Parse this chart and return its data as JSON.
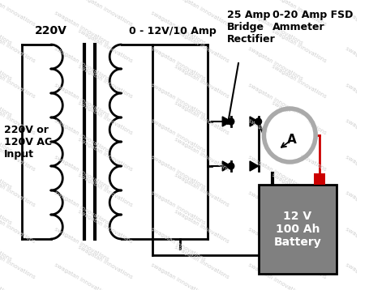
{
  "background_color": "#ffffff",
  "watermark_text": "swagatan innovations",
  "watermark_color": "#d0d0d0",
  "label_220v": "220V",
  "label_transformer_out": "0 - 12V/10 Amp",
  "label_bridge": "25 Amp\nBridge\nRectifier",
  "label_ammeter": "0-20 Amp FSD\nAmmeter",
  "label_input": "220V or\n120V AC\nInput",
  "label_battery": "12 V\n100 Ah\nBattery",
  "colors": {
    "black": "#000000",
    "red": "#cc0000",
    "gray_battery": "#808080",
    "gray_ammeter": "#aaaaaa",
    "white": "#ffffff"
  },
  "figsize": [
    4.56,
    3.58
  ],
  "dpi": 100
}
